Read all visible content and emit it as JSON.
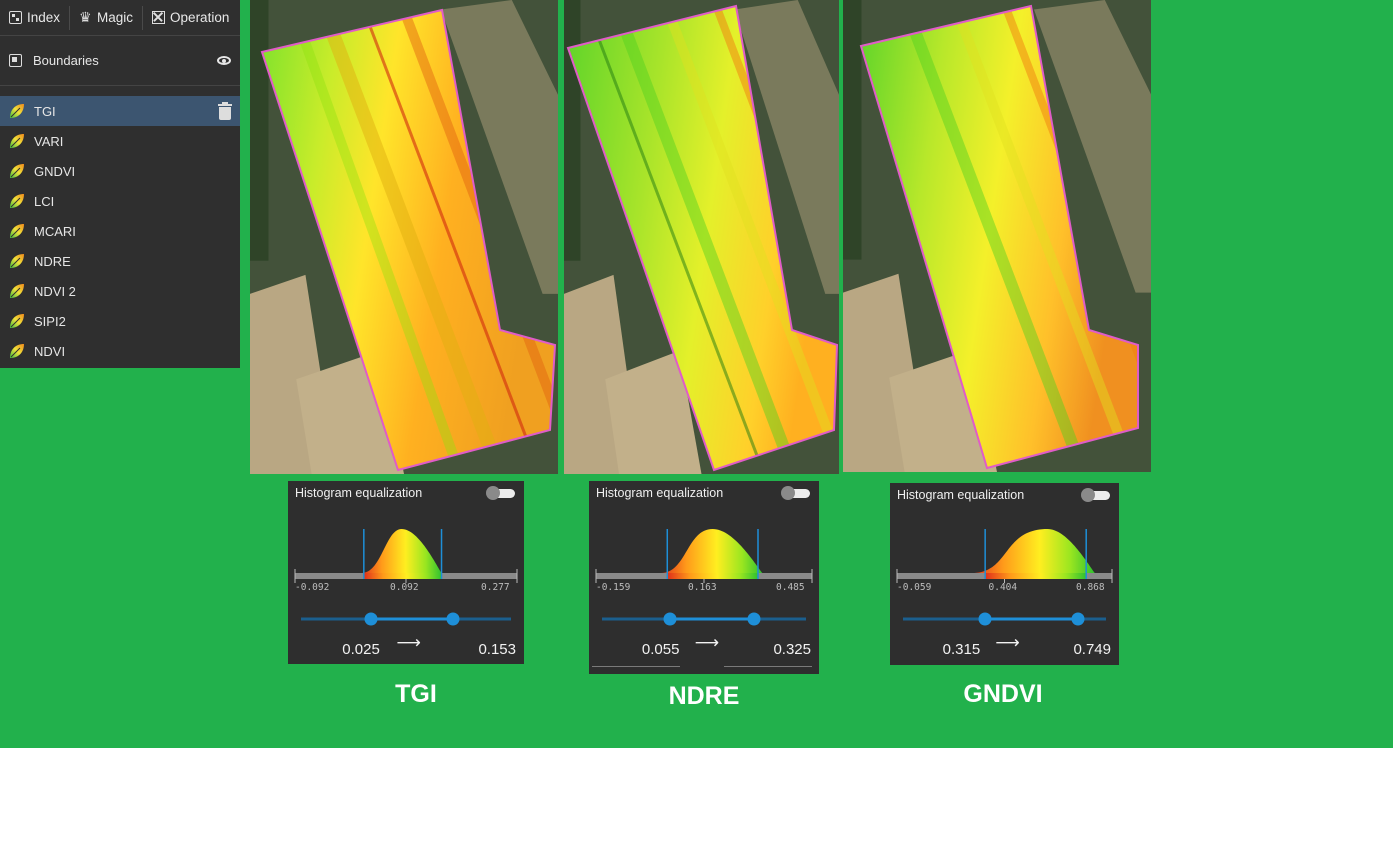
{
  "toolbar": {
    "index_label": "Index",
    "magic_label": "Magic",
    "operation_label": "Operation"
  },
  "boundaries": {
    "label": "Boundaries"
  },
  "layers": [
    {
      "label": "TGI",
      "active": true
    },
    {
      "label": "VARI"
    },
    {
      "label": "GNDVI"
    },
    {
      "label": "LCI"
    },
    {
      "label": "MCARI"
    },
    {
      "label": "NDRE"
    },
    {
      "label": "NDVI 2"
    },
    {
      "label": "SIPI2"
    },
    {
      "label": "NDVI"
    }
  ],
  "histograms": [
    {
      "title": "Histogram equalization",
      "axis_min": "-0.092",
      "axis_mid": "0.092",
      "axis_max": "0.277",
      "low": "0.025",
      "high": "0.153",
      "arrow": "⟶",
      "caption": "TGI"
    },
    {
      "title": "Histogram equalization",
      "axis_min": "-0.159",
      "axis_mid": "0.163",
      "axis_max": "0.485",
      "low": "0.055",
      "high": "0.325",
      "arrow": "⟶",
      "caption": "NDRE"
    },
    {
      "title": "Histogram equalization",
      "axis_min": "-0.059",
      "axis_mid": "0.404",
      "axis_max": "0.868",
      "low": "0.315",
      "high": "0.749",
      "arrow": "⟶",
      "caption": "GNDVI"
    }
  ],
  "colors": {
    "background": "#22b14c",
    "panel": "#2f2f2f",
    "active_row": "#3c5570",
    "slider": "#1e8fd8",
    "boundary": "#e05cc8"
  }
}
